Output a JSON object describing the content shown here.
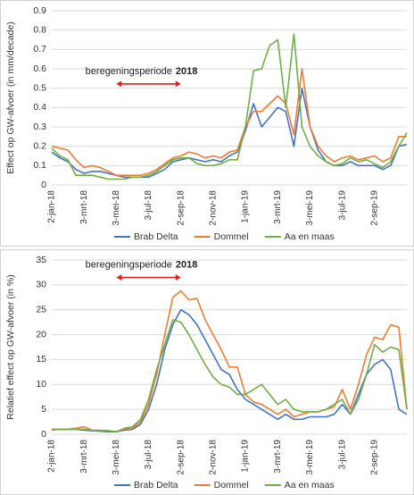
{
  "chart_data": [
    {
      "type": "line",
      "y_label": "Effect op GW-afvoer  (in mm/decade)",
      "annotation": "beregeningsperiode",
      "annotation_year": "2018",
      "categories": [
        "2-jan-18",
        null,
        null,
        null,
        "3-mrt-18",
        null,
        null,
        null,
        "3-mei-18",
        null,
        null,
        null,
        "3-jul-18",
        null,
        null,
        null,
        "2-sep-18",
        null,
        null,
        null,
        "2-nov-18",
        null,
        null,
        null,
        "1-jan-19",
        null,
        null,
        null,
        "3-mrt-19",
        null,
        null,
        null,
        "3-mei-19",
        null,
        null,
        null,
        "3-jul-19",
        null,
        null,
        null,
        "2-sep-19",
        null,
        null,
        null,
        null
      ],
      "ylim": [
        0,
        0.9
      ],
      "yticks": [
        0,
        0.1,
        0.2,
        0.3,
        0.4,
        0.5,
        0.6,
        0.7,
        0.8,
        0.9
      ],
      "grid": true,
      "series": [
        {
          "name": "Brab Delta",
          "color": "#4472c4",
          "values": [
            0.17,
            0.14,
            0.12,
            0.08,
            0.06,
            0.07,
            0.07,
            0.06,
            0.05,
            0.04,
            0.04,
            0.04,
            0.04,
            0.06,
            0.08,
            0.12,
            0.13,
            0.14,
            0.13,
            0.12,
            0.13,
            0.12,
            0.15,
            0.17,
            0.28,
            0.42,
            0.3,
            0.35,
            0.4,
            0.38,
            0.2,
            0.5,
            0.3,
            0.18,
            0.12,
            0.1,
            0.1,
            0.12,
            0.1,
            0.1,
            0.1,
            0.08,
            0.1,
            0.2,
            0.21
          ]
        },
        {
          "name": "Dommel",
          "color": "#ed7d31",
          "values": [
            0.2,
            0.19,
            0.18,
            0.13,
            0.09,
            0.1,
            0.09,
            0.07,
            0.05,
            0.05,
            0.05,
            0.05,
            0.06,
            0.08,
            0.11,
            0.14,
            0.15,
            0.17,
            0.16,
            0.14,
            0.15,
            0.14,
            0.17,
            0.18,
            0.3,
            0.38,
            0.38,
            0.42,
            0.46,
            0.42,
            0.26,
            0.6,
            0.3,
            0.2,
            0.15,
            0.12,
            0.14,
            0.15,
            0.13,
            0.14,
            0.15,
            0.12,
            0.14,
            0.25,
            0.25
          ]
        },
        {
          "name": "Aa en maas",
          "color": "#70ad47",
          "values": [
            0.19,
            0.15,
            0.13,
            0.05,
            0.05,
            0.05,
            0.04,
            0.03,
            0.03,
            0.03,
            0.04,
            0.04,
            0.05,
            0.07,
            0.1,
            0.13,
            0.14,
            0.14,
            0.11,
            0.1,
            0.1,
            0.11,
            0.13,
            0.13,
            0.3,
            0.59,
            0.6,
            0.72,
            0.75,
            0.4,
            0.78,
            0.3,
            0.2,
            0.15,
            0.12,
            0.1,
            0.11,
            0.14,
            0.12,
            0.13,
            0.11,
            0.09,
            0.12,
            0.2,
            0.27
          ]
        }
      ]
    },
    {
      "type": "line",
      "y_label": "Relatief effect op GW-afvoer (in %)",
      "annotation": "beregeningsperiode",
      "annotation_year": "2018",
      "categories": [
        "2-jan-18",
        null,
        null,
        null,
        "3-mrt-18",
        null,
        null,
        null,
        "3-mei-18",
        null,
        null,
        null,
        "3-jul-18",
        null,
        null,
        null,
        "2-sep-18",
        null,
        null,
        null,
        "2-nov-18",
        null,
        null,
        null,
        "1-jan-19",
        null,
        null,
        null,
        "3-mrt-19",
        null,
        null,
        null,
        "3-mei-19",
        null,
        null,
        null,
        "3-jul-19",
        null,
        null,
        null,
        "2-sep-19",
        null,
        null,
        null,
        null
      ],
      "ylim": [
        0,
        35
      ],
      "yticks": [
        0,
        5,
        10,
        15,
        20,
        25,
        30,
        35
      ],
      "grid": true,
      "series": [
        {
          "name": "Brab Delta",
          "color": "#4472c4",
          "values": [
            1,
            1,
            1,
            1,
            0.8,
            0.7,
            0.6,
            0.5,
            0.5,
            0.8,
            1,
            2,
            5,
            10,
            17,
            22,
            25,
            24,
            22,
            19,
            16,
            13,
            12,
            9,
            7,
            6,
            5,
            4,
            3,
            4,
            3,
            3,
            3.5,
            3.5,
            3.5,
            4,
            6,
            4,
            8,
            12,
            14,
            15,
            13,
            5,
            4
          ]
        },
        {
          "name": "Dommel",
          "color": "#ed7d31",
          "values": [
            1,
            1,
            1,
            1.2,
            1.5,
            0.8,
            0.8,
            0.7,
            0.5,
            1,
            1.2,
            2.5,
            6,
            12,
            20,
            27.5,
            28.8,
            27,
            27.3,
            23,
            20,
            17,
            13.5,
            13.5,
            8,
            6.5,
            6,
            5,
            4,
            5,
            3.5,
            4,
            4.5,
            4.5,
            5,
            5.5,
            9,
            5,
            10,
            16,
            19.5,
            19,
            22,
            21.5,
            5
          ]
        },
        {
          "name": "Aa en maas",
          "color": "#70ad47",
          "values": [
            0.8,
            1,
            1,
            1,
            1,
            0.8,
            0.7,
            0.7,
            0.5,
            1.2,
            1.5,
            3,
            7,
            13,
            18,
            23,
            22.5,
            20,
            17,
            14,
            11.5,
            10,
            9.5,
            8,
            8,
            9,
            10,
            8,
            6,
            7,
            5,
            4.5,
            4.5,
            4.5,
            5,
            6,
            7,
            4,
            7,
            12,
            18,
            16.5,
            17.5,
            17,
            5
          ]
        }
      ]
    }
  ]
}
